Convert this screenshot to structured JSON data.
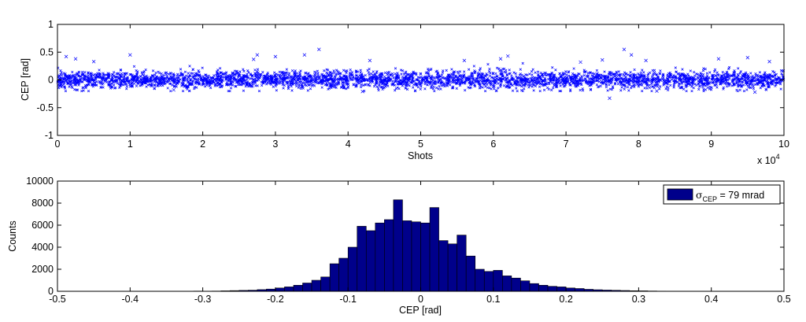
{
  "chart_data": [
    {
      "type": "scatter",
      "xlabel": "Shots",
      "ylabel": "CEP [rad]",
      "xlim": [
        0,
        10
      ],
      "ylim": [
        -1,
        1
      ],
      "x_ticks": [
        "0",
        "1",
        "2",
        "3",
        "4",
        "5",
        "6",
        "7",
        "8",
        "9",
        "10"
      ],
      "y_ticks": [
        "-1",
        "-0.5",
        "0",
        "0.5",
        "1"
      ],
      "x_exponent_base": "x 10",
      "x_exponent_power": "4",
      "marker": "x",
      "color": "#0000ff",
      "band": {
        "mean": 0.0,
        "sigma": 0.079,
        "typical_min": -0.2,
        "typical_max": 0.3
      },
      "outliers": [
        {
          "x": 0.12,
          "y": 0.42
        },
        {
          "x": 0.25,
          "y": 0.38
        },
        {
          "x": 0.5,
          "y": 0.33
        },
        {
          "x": 1.0,
          "y": 0.45
        },
        {
          "x": 1.6,
          "y": -0.18
        },
        {
          "x": 2.7,
          "y": 0.37
        },
        {
          "x": 2.75,
          "y": 0.45
        },
        {
          "x": 3.0,
          "y": 0.42
        },
        {
          "x": 3.4,
          "y": 0.45
        },
        {
          "x": 3.6,
          "y": 0.55
        },
        {
          "x": 4.2,
          "y": -0.21
        },
        {
          "x": 4.3,
          "y": 0.35
        },
        {
          "x": 5.6,
          "y": 0.35
        },
        {
          "x": 6.1,
          "y": 0.38
        },
        {
          "x": 6.2,
          "y": 0.43
        },
        {
          "x": 7.2,
          "y": 0.32
        },
        {
          "x": 7.5,
          "y": 0.36
        },
        {
          "x": 7.6,
          "y": -0.33
        },
        {
          "x": 7.8,
          "y": 0.55
        },
        {
          "x": 7.9,
          "y": 0.45
        },
        {
          "x": 8.1,
          "y": 0.35
        },
        {
          "x": 8.25,
          "y": -0.2
        },
        {
          "x": 9.1,
          "y": 0.38
        },
        {
          "x": 9.5,
          "y": 0.4
        },
        {
          "x": 9.6,
          "y": -0.22
        },
        {
          "x": 9.8,
          "y": 0.33
        }
      ]
    },
    {
      "type": "bar",
      "xlabel": "CEP [rad]",
      "ylabel": "Counts",
      "xlim": [
        -0.5,
        0.5
      ],
      "ylim": [
        0,
        10000
      ],
      "x_ticks": [
        "-0.5",
        "-0.4",
        "-0.3",
        "-0.2",
        "-0.1",
        "0",
        "0.1",
        "0.2",
        "0.3",
        "0.4",
        "0.5"
      ],
      "y_ticks": [
        "0",
        "2000",
        "4000",
        "6000",
        "8000",
        "10000"
      ],
      "bar_color": "#00008b",
      "bin_width": 0.0125,
      "bin_centers": [
        -0.30625,
        -0.29375,
        -0.28125,
        -0.26875,
        -0.25625,
        -0.24375,
        -0.23125,
        -0.21875,
        -0.20625,
        -0.19375,
        -0.18125,
        -0.16875,
        -0.15625,
        -0.14375,
        -0.13125,
        -0.11875,
        -0.10625,
        -0.09375,
        -0.08125,
        -0.06875,
        -0.05625,
        -0.04375,
        -0.03125,
        -0.01875,
        -0.00625,
        0.00625,
        0.01875,
        0.03125,
        0.04375,
        0.05625,
        0.06875,
        0.08125,
        0.09375,
        0.10625,
        0.11875,
        0.13125,
        0.14375,
        0.15625,
        0.16875,
        0.18125,
        0.19375,
        0.20625,
        0.21875,
        0.23125,
        0.24375,
        0.25625,
        0.26875,
        0.28125,
        0.29375,
        0.30625,
        0.31875,
        0.33125
      ],
      "values": [
        20,
        10,
        20,
        40,
        60,
        80,
        100,
        150,
        200,
        300,
        400,
        550,
        750,
        1000,
        1300,
        2500,
        3000,
        4000,
        5900,
        5500,
        6200,
        6500,
        8300,
        6400,
        6300,
        6200,
        7600,
        4600,
        4300,
        5100,
        3200,
        2000,
        1800,
        1900,
        1400,
        1200,
        950,
        700,
        550,
        450,
        400,
        300,
        250,
        180,
        140,
        110,
        90,
        70,
        50,
        40,
        25,
        15
      ],
      "legend": {
        "label_main": "σ",
        "label_sub": "CEP",
        "label_rest": " = 79 mrad",
        "position": "top-right"
      }
    }
  ]
}
